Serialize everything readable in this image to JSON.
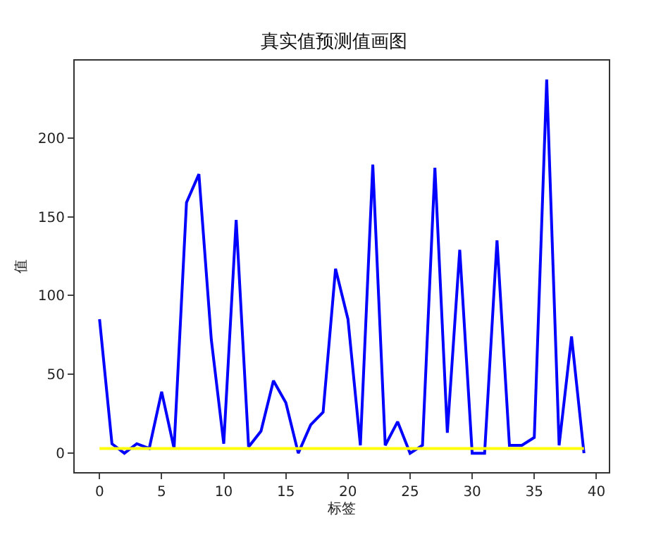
{
  "chart_data": {
    "type": "line",
    "title": "真实值预测值画图",
    "xlabel": "标签",
    "ylabel": "值",
    "x": [
      0,
      1,
      2,
      3,
      4,
      5,
      6,
      7,
      8,
      9,
      10,
      11,
      12,
      13,
      14,
      15,
      16,
      17,
      18,
      19,
      20,
      21,
      22,
      23,
      24,
      25,
      26,
      27,
      28,
      29,
      30,
      31,
      32,
      33,
      34,
      35,
      36,
      37,
      38,
      39
    ],
    "series": [
      {
        "color": "#0000ff",
        "values": [
          85,
          6,
          0,
          6,
          3,
          39,
          3,
          159,
          177,
          72,
          6,
          148,
          4,
          14,
          46,
          32,
          0,
          18,
          26,
          117,
          85,
          5,
          183,
          5,
          20,
          0,
          5,
          181,
          13,
          129,
          0,
          0,
          135,
          5,
          5,
          10,
          237,
          5,
          74,
          0
        ]
      },
      {
        "color": "#ffff00",
        "values": [
          3,
          3,
          3,
          3,
          3,
          3,
          3,
          3,
          3,
          3,
          3,
          3,
          3,
          3,
          3,
          3,
          3,
          3,
          3,
          3,
          3,
          3,
          3,
          3,
          3,
          3,
          3,
          3,
          3,
          3,
          3,
          3,
          3,
          3,
          3,
          3,
          3,
          3,
          3,
          3
        ]
      }
    ],
    "xlim": [
      -2,
      41
    ],
    "xticks": [
      0,
      5,
      10,
      15,
      20,
      25,
      30,
      35,
      40
    ],
    "ylim": [
      -12,
      249
    ],
    "yticks": [
      0,
      50,
      100,
      150,
      200
    ],
    "legend": false
  }
}
